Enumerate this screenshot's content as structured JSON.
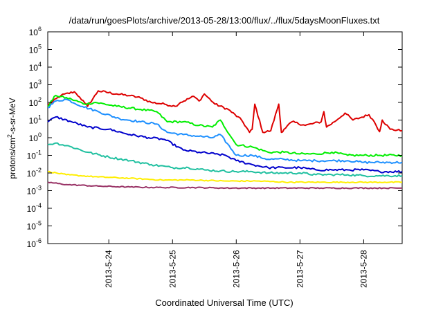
{
  "chart_data": {
    "type": "line",
    "title": "/data/run/goesPlots/archive/2013-05-28/13:00/flux/../flux/5daysMoonFluxes.txt",
    "xlabel": "Coordinated Universal Time (UTC)",
    "ylabel": {
      "base": "protons/cm",
      "sup": "2",
      "rest": "-s-sr-MeV"
    },
    "xlim": [
      "2013-05-23T01:00",
      "2013-05-28T14:30"
    ],
    "ylim": [
      1e-06,
      1000000.0
    ],
    "yscale": "log",
    "grid": false,
    "legend": "none",
    "x_ticks": [
      {
        "date": "2013-05-24T00:00",
        "label": "2013-5-24"
      },
      {
        "date": "2013-05-25T00:00",
        "label": "2013-5-25"
      },
      {
        "date": "2013-05-26T00:00",
        "label": "2013-5-26"
      },
      {
        "date": "2013-05-27T00:00",
        "label": "2013-5-27"
      },
      {
        "date": "2013-05-28T00:00",
        "label": "2013-5-28"
      }
    ],
    "y_ticks": [
      {
        "value": 1e-06,
        "base": "10",
        "exp": "-6"
      },
      {
        "value": 1e-05,
        "base": "10",
        "exp": "-5"
      },
      {
        "value": 0.0001,
        "base": "10",
        "exp": "-4"
      },
      {
        "value": 0.001,
        "base": "10",
        "exp": "-3"
      },
      {
        "value": 0.01,
        "base": "10",
        "exp": "-2"
      },
      {
        "value": 0.1,
        "base": "10",
        "exp": "-1"
      },
      {
        "value": 1.0,
        "base": "10",
        "exp": "0"
      },
      {
        "value": 10.0,
        "base": "10",
        "exp": "1"
      },
      {
        "value": 100.0,
        "base": "10",
        "exp": "2"
      },
      {
        "value": 1000.0,
        "base": "10",
        "exp": "3"
      },
      {
        "value": 10000.0,
        "base": "10",
        "exp": "4"
      },
      {
        "value": 100000.0,
        "base": "10",
        "exp": "5"
      },
      {
        "value": 1000000.0,
        "base": "10",
        "exp": "6"
      }
    ],
    "series": [
      {
        "color": "#dd0000",
        "x": [
          "2013-05-23T01:00",
          "2013-05-23T06:00",
          "2013-05-23T11:00",
          "2013-05-23T13:00",
          "2013-05-23T15:00",
          "2013-05-23T16:00",
          "2013-05-23T20:00",
          "2013-05-24T03:00",
          "2013-05-24T08:00",
          "2013-05-24T12:00",
          "2013-05-24T16:00",
          "2013-05-24T21:00",
          "2013-05-25T01:00",
          "2013-05-25T03:00",
          "2013-05-25T08:00",
          "2013-05-25T10:00",
          "2013-05-25T12:00",
          "2013-05-25T16:00",
          "2013-05-25T21:00",
          "2013-05-26T02:00",
          "2013-05-26T05:00",
          "2013-05-26T06:00",
          "2013-05-26T07:00",
          "2013-05-26T10:00",
          "2013-05-26T13:00",
          "2013-05-26T16:00",
          "2013-05-26T17:00",
          "2013-05-26T18:00",
          "2013-05-26T21:00",
          "2013-05-27T02:00",
          "2013-05-27T08:00",
          "2013-05-27T09:00",
          "2013-05-27T10:00",
          "2013-05-27T13:00",
          "2013-05-27T17:00",
          "2013-05-27T20:00",
          "2013-05-28T02:00",
          "2013-05-28T04:00",
          "2013-05-28T06:00",
          "2013-05-28T07:00",
          "2013-05-28T10:00",
          "2013-05-28T14:30"
        ],
        "y": [
          70,
          250,
          400,
          200,
          90,
          60,
          450,
          300,
          240,
          180,
          100,
          80,
          60,
          100,
          220,
          120,
          300,
          80,
          40,
          10,
          2,
          3,
          80,
          2,
          2.5,
          80,
          2,
          3,
          8,
          5,
          8,
          30,
          4,
          8,
          25,
          10,
          20,
          8,
          2.2,
          10,
          3,
          2.5
        ]
      },
      {
        "color": "#00ee00",
        "x": [
          "2013-05-23T01:00",
          "2013-05-23T04:00",
          "2013-05-23T10:00",
          "2013-05-23T15:00",
          "2013-05-23T19:00",
          "2013-05-24T03:00",
          "2013-05-24T12:00",
          "2013-05-24T18:00",
          "2013-05-24T22:00",
          "2013-05-25T04:00",
          "2013-05-25T10:00",
          "2013-05-25T15:00",
          "2013-05-25T18:00",
          "2013-05-26T00:00",
          "2013-05-26T06:00",
          "2013-05-26T12:00",
          "2013-05-26T18:00",
          "2013-05-27T00:00",
          "2013-05-27T06:00",
          "2013-05-27T12:00",
          "2013-05-27T18:00",
          "2013-05-28T00:00",
          "2013-05-28T06:00",
          "2013-05-28T14:30"
        ],
        "y": [
          60,
          250,
          150,
          80,
          100,
          60,
          40,
          30,
          8,
          8,
          5,
          4,
          10,
          0.4,
          0.3,
          0.15,
          0.15,
          0.12,
          0.12,
          0.15,
          0.1,
          0.1,
          0.1,
          0.1
        ]
      },
      {
        "color": "#1e90ff",
        "x": [
          "2013-05-23T01:00",
          "2013-05-23T04:00",
          "2013-05-23T08:00",
          "2013-05-23T14:00",
          "2013-05-23T20:00",
          "2013-05-24T04:00",
          "2013-05-24T12:00",
          "2013-05-24T18:00",
          "2013-05-24T22:00",
          "2013-05-25T04:00",
          "2013-05-25T10:00",
          "2013-05-25T15:00",
          "2013-05-25T18:00",
          "2013-05-26T00:00",
          "2013-05-26T06:00",
          "2013-05-26T12:00",
          "2013-05-26T18:00",
          "2013-05-27T00:00",
          "2013-05-27T06:00",
          "2013-05-27T12:00",
          "2013-05-27T18:00",
          "2013-05-28T00:00",
          "2013-05-28T06:00",
          "2013-05-28T14:30"
        ],
        "y": [
          50,
          120,
          150,
          60,
          30,
          12,
          8,
          6,
          2,
          1.5,
          1.2,
          1,
          1.5,
          0.1,
          0.1,
          0.06,
          0.06,
          0.05,
          0.05,
          0.05,
          0.05,
          0.04,
          0.04,
          0.04
        ]
      },
      {
        "color": "#0000cc",
        "x": [
          "2013-05-23T01:00",
          "2013-05-23T04:00",
          "2013-05-23T10:00",
          "2013-05-23T16:00",
          "2013-05-24T00:00",
          "2013-05-24T08:00",
          "2013-05-24T15:00",
          "2013-05-24T21:00",
          "2013-05-25T04:00",
          "2013-05-25T10:00",
          "2013-05-25T16:00",
          "2013-05-25T20:00",
          "2013-05-26T00:00",
          "2013-05-26T06:00",
          "2013-05-26T12:00",
          "2013-05-26T18:00",
          "2013-05-27T00:00",
          "2013-05-27T06:00",
          "2013-05-27T12:00",
          "2013-05-27T18:00",
          "2013-05-28T00:00",
          "2013-05-28T06:00",
          "2013-05-28T14:30"
        ],
        "y": [
          8,
          15,
          8,
          4,
          3,
          1.5,
          1,
          0.8,
          0.2,
          0.15,
          0.12,
          0.1,
          0.05,
          0.03,
          0.02,
          0.02,
          0.02,
          0.015,
          0.015,
          0.015,
          0.015,
          0.012,
          0.012
        ]
      },
      {
        "color": "#20c0a0",
        "x": [
          "2013-05-23T01:00",
          "2013-05-23T04:00",
          "2013-05-23T10:00",
          "2013-05-23T16:00",
          "2013-05-24T00:00",
          "2013-05-24T08:00",
          "2013-05-24T16:00",
          "2013-05-25T00:00",
          "2013-05-25T06:00",
          "2013-05-25T12:00",
          "2013-05-25T18:00",
          "2013-05-26T00:00",
          "2013-05-26T06:00",
          "2013-05-26T12:00",
          "2013-05-26T18:00",
          "2013-05-27T00:00",
          "2013-05-27T06:00",
          "2013-05-27T12:00",
          "2013-05-27T18:00",
          "2013-05-28T00:00",
          "2013-05-28T06:00",
          "2013-05-28T14:30"
        ],
        "y": [
          0.4,
          0.5,
          0.3,
          0.15,
          0.08,
          0.05,
          0.03,
          0.02,
          0.02,
          0.015,
          0.013,
          0.012,
          0.012,
          0.01,
          0.01,
          0.01,
          0.008,
          0.008,
          0.008,
          0.007,
          0.007,
          0.007
        ]
      },
      {
        "color": "#ffee00",
        "x": [
          "2013-05-23T01:00",
          "2013-05-23T08:00",
          "2013-05-23T20:00",
          "2013-05-24T08:00",
          "2013-05-24T20:00",
          "2013-05-25T08:00",
          "2013-05-25T20:00",
          "2013-05-26T08:00",
          "2013-05-26T20:00",
          "2013-05-27T08:00",
          "2013-05-27T20:00",
          "2013-05-28T08:00",
          "2013-05-28T14:30"
        ],
        "y": [
          0.012,
          0.008,
          0.006,
          0.005,
          0.004,
          0.004,
          0.0035,
          0.0035,
          0.003,
          0.003,
          0.003,
          0.003,
          0.003
        ]
      },
      {
        "color": "#993366",
        "x": [
          "2013-05-23T01:00",
          "2013-05-23T08:00",
          "2013-05-23T20:00",
          "2013-05-24T08:00",
          "2013-05-24T20:00",
          "2013-05-25T08:00",
          "2013-05-25T20:00",
          "2013-05-26T08:00",
          "2013-05-26T20:00",
          "2013-05-27T08:00",
          "2013-05-27T20:00",
          "2013-05-28T08:00",
          "2013-05-28T14:30"
        ],
        "y": [
          0.003,
          0.0022,
          0.0018,
          0.0016,
          0.0015,
          0.0015,
          0.0014,
          0.0014,
          0.0014,
          0.0014,
          0.0014,
          0.0014,
          0.0014
        ]
      }
    ]
  }
}
